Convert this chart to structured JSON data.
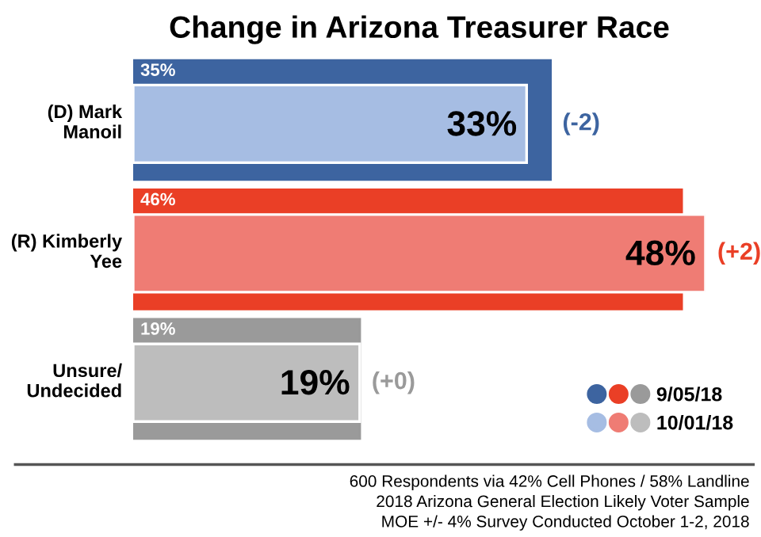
{
  "chart_data": {
    "type": "bar",
    "orientation": "horizontal",
    "title": "Change in Arizona Treasurer Race",
    "categories": [
      "(D) Mark\nManoil",
      "(R) Kimberly\nYee",
      "Unsure/\nUndecided"
    ],
    "series": [
      {
        "name": "9/05/18",
        "colors": [
          "#3d64a0",
          "#ea3f26",
          "#9a9a9a"
        ],
        "values": [
          35,
          46,
          19
        ],
        "value_labels": [
          "35%",
          "46%",
          "19%"
        ]
      },
      {
        "name": "10/01/18",
        "colors": [
          "#a6bde3",
          "#ef7c74",
          "#bdbdbd"
        ],
        "values": [
          33,
          48,
          19
        ],
        "value_labels": [
          "33%",
          "48%",
          "19%"
        ]
      }
    ],
    "legend": "bottom right",
    "grid": false,
    "tick_labels": "y",
    "annotations": [
      {
        "text": "(-2)",
        "x": 35,
        "y": "(D) Mark\nManoil"
      },
      {
        "text": "(+2)",
        "x": 48,
        "y": "(R) Kimberly\nYee"
      },
      {
        "text": "(+0)",
        "x": 19,
        "y": "Unsure/\nUndecided"
      },
      "600 Respondents via 42% Cell Phones / 58% Landline\n2018 Arizona General Election Likely Voter Sample\nMOE +/- 4% Survey Conducted October 1-2, 2018"
    ]
  }
}
